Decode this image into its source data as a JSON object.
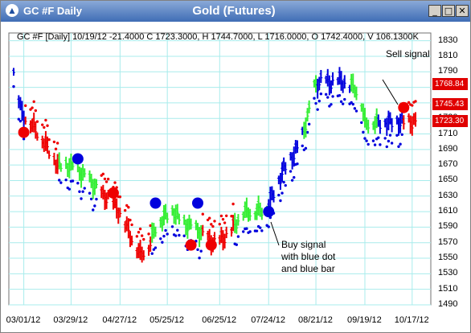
{
  "window": {
    "title": "GC #F Daily",
    "chart_title": "Gold (Futures)",
    "buttons": [
      "_",
      "□",
      "✕"
    ]
  },
  "header_line": "GC #F [Daily] 10/19/12  -21.4000  C 1723.3000, H 1744.7000, L 1716.0000, O 1742.4000, V 106.1300K",
  "price_tags": [
    "1768.84",
    "1745.43",
    "1723.30"
  ],
  "annotations": {
    "sell": "Sell signal",
    "buy": [
      "Buy signal",
      "with blue dot",
      "and blue bar"
    ]
  },
  "colors": {
    "blue": "#0000dd",
    "green": "#33ee33",
    "red": "#ee0000",
    "grid": "#a8ecec"
  },
  "chart_data": {
    "type": "candlestick-colored-bars",
    "y_ticks": [
      1830,
      1810,
      1790,
      1770,
      1750,
      1730,
      1710,
      1690,
      1670,
      1650,
      1630,
      1610,
      1590,
      1570,
      1550,
      1530,
      1510,
      1490
    ],
    "ylim": [
      1490,
      1840
    ],
    "x_ticks": [
      "03/01/12",
      "03/29/12",
      "04/27/12",
      "05/25/12",
      "06/25/12",
      "07/24/12",
      "08/21/12",
      "09/19/12",
      "10/17/12"
    ],
    "grid": true,
    "bars": {
      "color_runs": [
        {
          "from": "02/24/12",
          "to": "03/01/12",
          "color": "blue"
        },
        {
          "from": "03/02/12",
          "to": "03/21/12",
          "color": "red"
        },
        {
          "from": "03/22/12",
          "to": "04/13/12",
          "color": "green"
        },
        {
          "from": "04/16/12",
          "to": "05/15/12",
          "color": "red"
        },
        {
          "from": "05/16/12",
          "to": "06/14/12",
          "color": "green"
        },
        {
          "from": "06/15/12",
          "to": "07/03/12",
          "color": "red"
        },
        {
          "from": "07/05/12",
          "to": "07/23/12",
          "color": "green"
        },
        {
          "from": "07/24/12",
          "to": "08/13/12",
          "color": "blue"
        },
        {
          "from": "08/14/12",
          "to": "08/21/12",
          "color": "green"
        },
        {
          "from": "08/22/12",
          "to": "09/10/12",
          "color": "blue"
        },
        {
          "from": "09/11/12",
          "to": "09/26/12",
          "color": "green"
        },
        {
          "from": "09/27/12",
          "to": "10/11/12",
          "color": "blue"
        },
        {
          "from": "10/12/12",
          "to": "10/19/12",
          "color": "red"
        }
      ]
    },
    "signal_dots": [
      {
        "date": "03/01/12",
        "price": 1712,
        "color": "red"
      },
      {
        "date": "04/02/12",
        "price": 1678,
        "color": "blue"
      },
      {
        "date": "04/23/12",
        "price": 1634,
        "color": "red"
      },
      {
        "date": "05/18/12",
        "price": 1621,
        "color": "blue"
      },
      {
        "date": "06/08/12",
        "price": 1567,
        "color": "red"
      },
      {
        "date": "06/12/12",
        "price": 1621,
        "color": "blue"
      },
      {
        "date": "06/20/12",
        "price": 1567,
        "color": "red"
      },
      {
        "date": "07/24/12",
        "price": 1610,
        "color": "blue"
      },
      {
        "date": "10/12/12",
        "price": 1744,
        "color": "red"
      }
    ]
  }
}
